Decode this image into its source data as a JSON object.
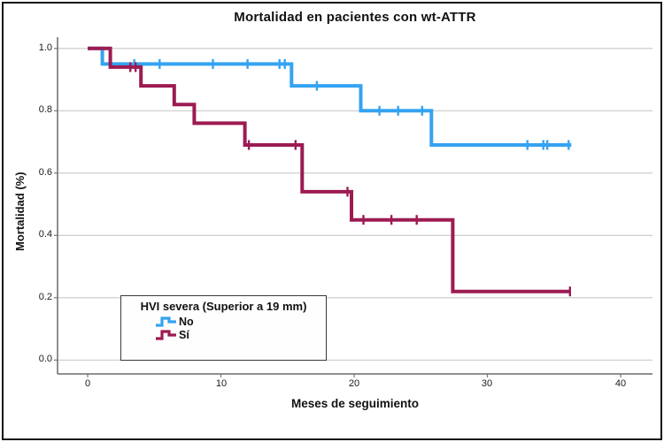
{
  "legend": {
    "title": "HVI severa (Superior a 19 mm)",
    "items": [
      {
        "label": "No",
        "color": "#35A3F1"
      },
      {
        "label": "Sí",
        "color": "#9C1B52"
      }
    ]
  },
  "axis_labels": {
    "x": [
      "0",
      "10",
      "20",
      "30",
      "40"
    ],
    "y": [
      "0.0",
      "0.2",
      "0.4",
      "0.6",
      "0.8",
      "1.0"
    ]
  },
  "chart_data": {
    "type": "line",
    "subtype": "kaplan-meier-step",
    "title": "Mortalidad en pacientes con wt-ATTR",
    "xlabel": "Meses de seguimiento",
    "ylabel": "Mortalidad (%)",
    "x_axis": {
      "min": 0,
      "max": 40,
      "ticks": [
        0,
        10,
        20,
        30,
        40
      ]
    },
    "y_axis": {
      "min": 0.0,
      "max": 1.0,
      "ticks": [
        0.0,
        0.2,
        0.4,
        0.6,
        0.8,
        1.0
      ]
    },
    "grid": "horizontal",
    "legend_position": "inside-bottom-left",
    "series": [
      {
        "name": "No",
        "color": "#35A3F1",
        "points": [
          [
            0,
            1.0
          ],
          [
            1.1,
            1.0
          ],
          [
            1.1,
            0.95
          ],
          [
            15.3,
            0.95
          ],
          [
            15.3,
            0.88
          ],
          [
            20.5,
            0.88
          ],
          [
            20.5,
            0.8
          ],
          [
            25.8,
            0.8
          ],
          [
            25.8,
            0.69
          ],
          [
            36.3,
            0.69
          ]
        ],
        "censor_marks": [
          [
            3.5,
            0.95
          ],
          [
            5.4,
            0.95
          ],
          [
            9.4,
            0.95
          ],
          [
            12.0,
            0.95
          ],
          [
            14.4,
            0.95
          ],
          [
            14.8,
            0.95
          ],
          [
            17.2,
            0.88
          ],
          [
            21.9,
            0.8
          ],
          [
            23.3,
            0.8
          ],
          [
            25.1,
            0.8
          ],
          [
            33.0,
            0.69
          ],
          [
            34.2,
            0.69
          ],
          [
            34.5,
            0.69
          ],
          [
            36.1,
            0.69
          ]
        ]
      },
      {
        "name": "Sí",
        "color": "#9C1B52",
        "points": [
          [
            0,
            1.0
          ],
          [
            1.7,
            1.0
          ],
          [
            1.7,
            0.94
          ],
          [
            4.0,
            0.94
          ],
          [
            4.0,
            0.88
          ],
          [
            6.5,
            0.88
          ],
          [
            6.5,
            0.82
          ],
          [
            8.0,
            0.82
          ],
          [
            8.0,
            0.76
          ],
          [
            11.8,
            0.76
          ],
          [
            11.8,
            0.69
          ],
          [
            16.1,
            0.69
          ],
          [
            16.1,
            0.54
          ],
          [
            19.8,
            0.54
          ],
          [
            19.8,
            0.45
          ],
          [
            27.4,
            0.45
          ],
          [
            27.4,
            0.22
          ],
          [
            36.2,
            0.22
          ]
        ],
        "censor_marks": [
          [
            3.2,
            0.94
          ],
          [
            3.6,
            0.94
          ],
          [
            12.1,
            0.69
          ],
          [
            15.6,
            0.69
          ],
          [
            19.5,
            0.54
          ],
          [
            20.7,
            0.45
          ],
          [
            22.8,
            0.45
          ],
          [
            24.7,
            0.45
          ],
          [
            36.2,
            0.22
          ]
        ]
      }
    ]
  }
}
